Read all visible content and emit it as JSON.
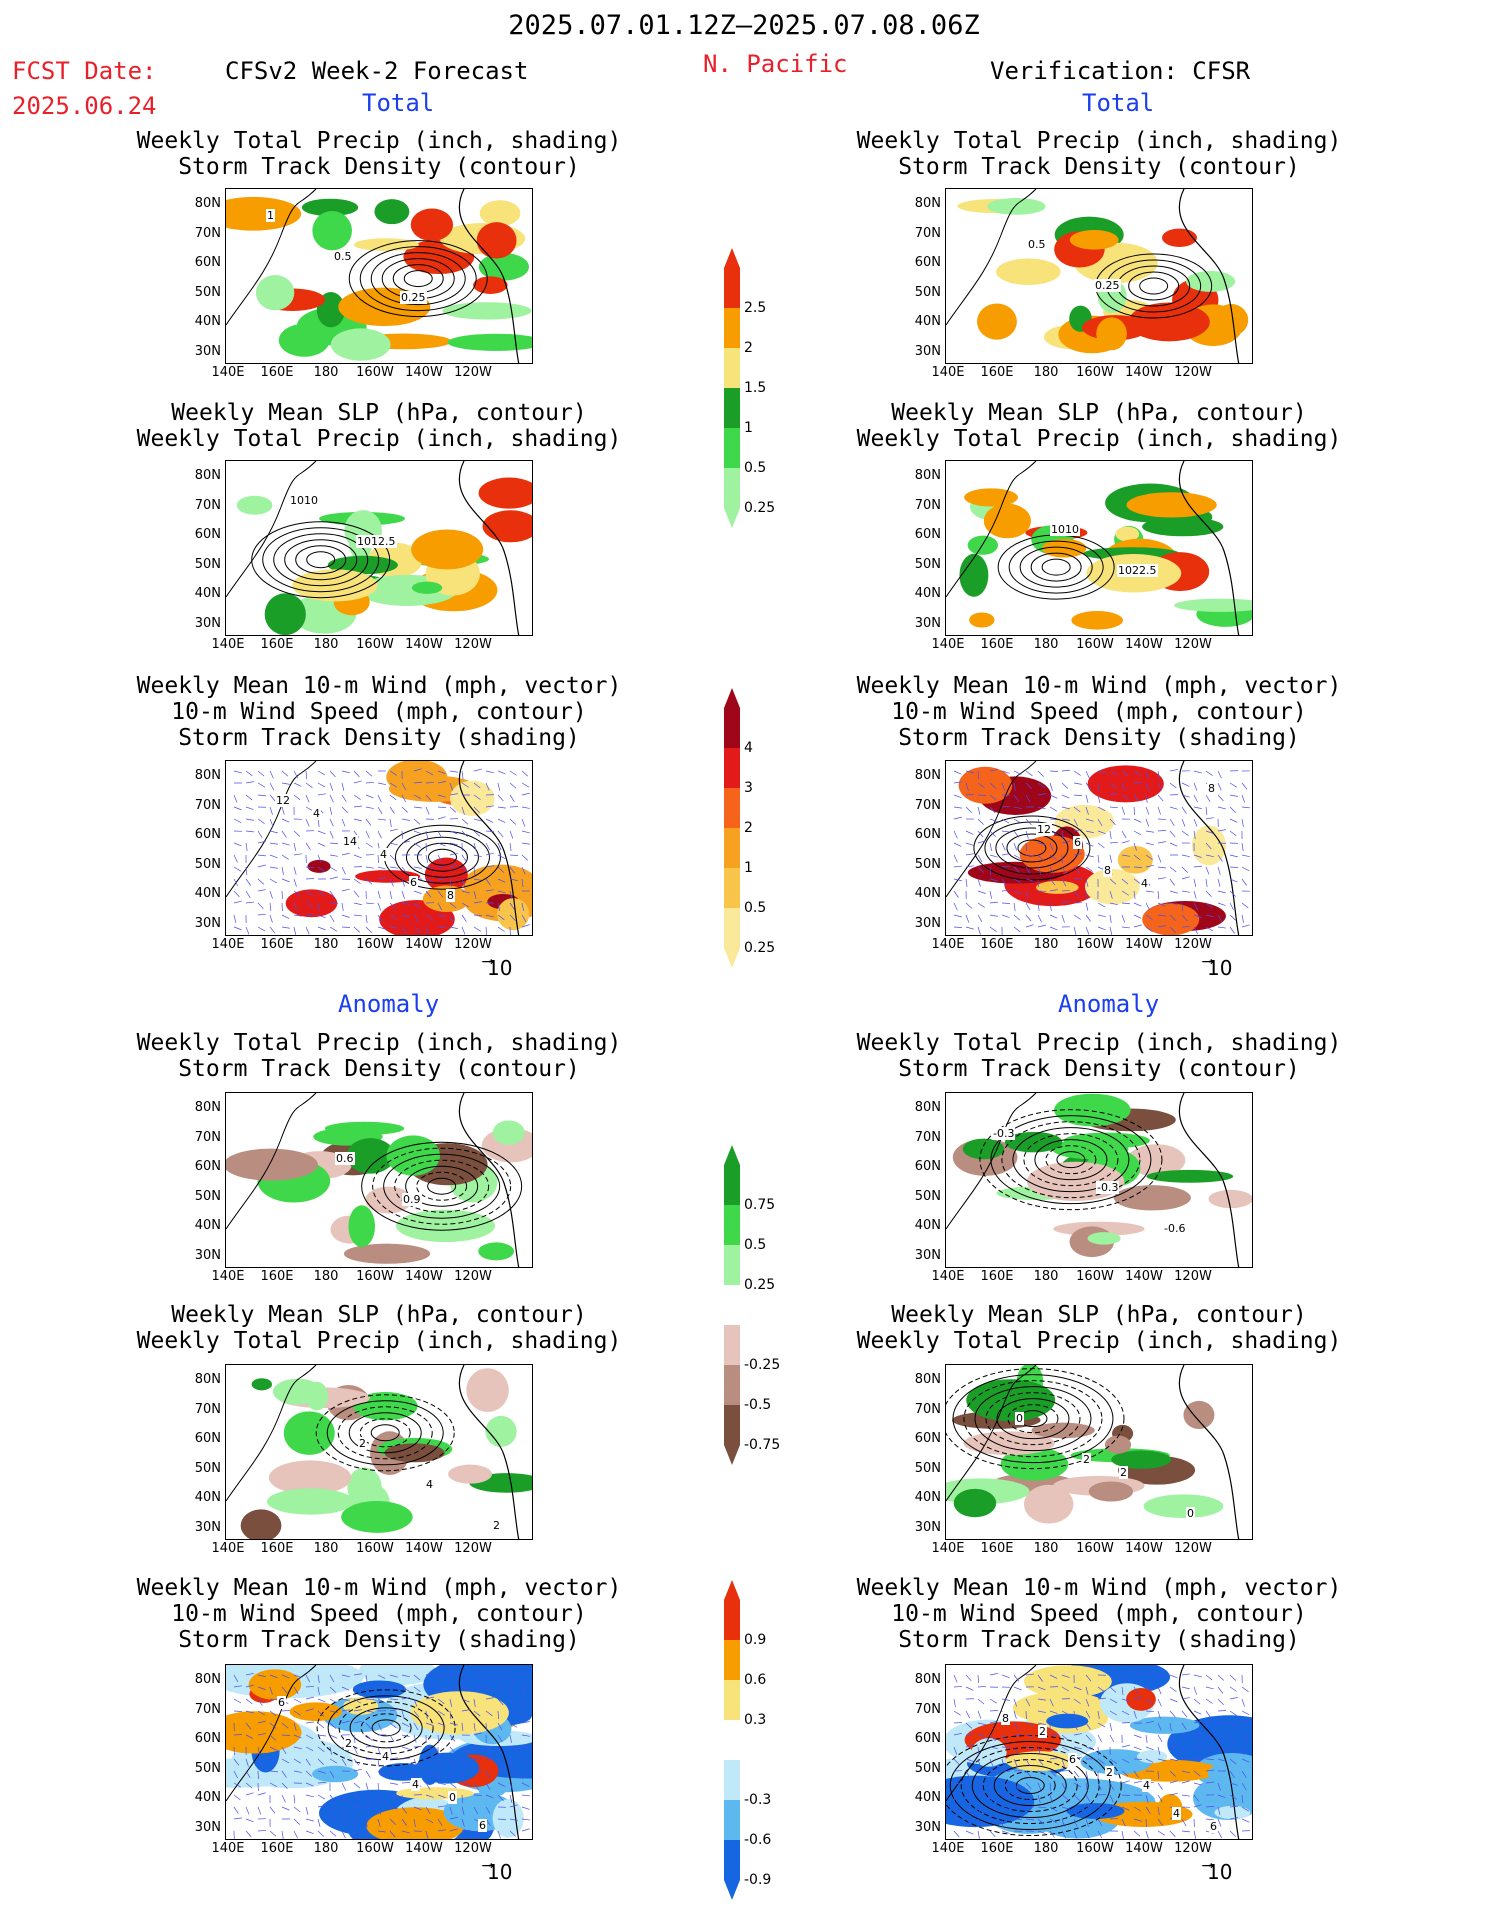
{
  "header": {
    "period": "2025.07.01.12Z–2025.07.08.06Z",
    "fcst_label": "FCST Date:",
    "fcst_date": "2025.06.24",
    "forecast_title": "CFSv2 Week-2 Forecast",
    "region": "N. Pacific",
    "verification_title": "Verification: CFSR"
  },
  "sections": {
    "total": "Total",
    "anomaly": "Anomaly"
  },
  "panel_titles": {
    "precip_storm": "Weekly Total Precip (inch, shading)\nStorm Track Density (contour)",
    "slp_precip": "Weekly Mean SLP (hPa, contour)\nWeekly Total Precip (inch, shading)",
    "wind_storm": "Weekly Mean 10-m Wind (mph, vector)\n10-m Wind Speed (mph, contour)\nStorm Track Density (shading)"
  },
  "axes": {
    "lat_ticks": [
      "80N",
      "70N",
      "60N",
      "50N",
      "40N",
      "30N"
    ],
    "lon_ticks": [
      "140E",
      "160E",
      "180",
      "160W",
      "140W",
      "120W"
    ],
    "vector_ref": "10"
  },
  "colorbars": [
    {
      "id": "precip_total",
      "labels": [
        "2.5",
        "2",
        "1.5",
        "1",
        "0.5",
        "0.25"
      ],
      "colors": [
        "#e8300c",
        "#f79d00",
        "#f8e27a",
        "#1a9e28",
        "#3fd84a",
        "#9ff2a0"
      ]
    },
    {
      "id": "storm_total",
      "labels": [
        "4",
        "3",
        "2",
        "1",
        "0.5",
        "0.25"
      ],
      "colors": [
        "#a0061a",
        "#e21a1a",
        "#f5641a",
        "#f7a120",
        "#f9c44a",
        "#fbe99a"
      ]
    },
    {
      "id": "precip_anom",
      "labels": [
        "0.75",
        "0.5",
        "0.25",
        "-0.25",
        "-0.5",
        "-0.75"
      ],
      "colors": [
        "#1a9e28",
        "#3fd84a",
        "#9ff2a0",
        "#ffffff",
        "#e6c4bb",
        "#b98d80",
        "#7a4f3e"
      ]
    },
    {
      "id": "storm_anom",
      "labels": [
        "0.9",
        "0.6",
        "0.3",
        "-0.3",
        "-0.6",
        "-0.9"
      ],
      "colors": [
        "#e8300c",
        "#f79d00",
        "#f8e27a",
        "#ffffff",
        "#bfe8f8",
        "#5eb8f0",
        "#1566e0"
      ]
    }
  ],
  "contour_labels": {
    "fcst_precip_total": [
      "1",
      "0.5",
      "0.25"
    ],
    "ver_precip_total": [
      "0.5",
      "0.25"
    ],
    "fcst_slp_total": [
      "1010",
      "1012.5"
    ],
    "ver_slp_total": [
      "1010",
      "1022.5"
    ],
    "fcst_wind_total": [
      "4",
      "4",
      "8",
      "12",
      "14",
      "6"
    ],
    "ver_wind_total": [
      "6",
      "4",
      "8",
      "12",
      "8"
    ],
    "fcst_precip_anom": [
      "0.6",
      "0.9"
    ],
    "ver_precip_anom": [
      "-0.3",
      "-0.6",
      "-0.3"
    ],
    "fcst_slp_anom": [
      "2",
      "4",
      "2"
    ],
    "ver_slp_anom": [
      "2",
      "0",
      "0",
      "2"
    ],
    "fcst_wind_anom": [
      "4",
      "0",
      "6",
      "2",
      "4",
      "6"
    ],
    "ver_wind_anom": [
      "4",
      "6",
      "2",
      "2",
      "4",
      "8",
      "6"
    ]
  },
  "colors": {
    "red_text": "#e8202a",
    "blue_text": "#1a3ef0",
    "vector": "#4d4df0"
  }
}
